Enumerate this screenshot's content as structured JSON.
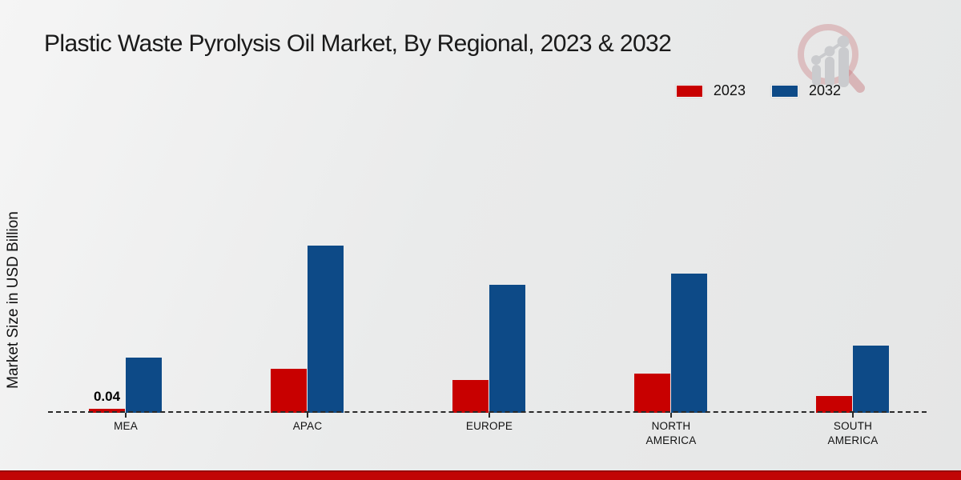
{
  "title": "Plastic Waste Pyrolysis Oil Market, By Regional, 2023 & 2032",
  "ylabel": "Market Size in USD Billion",
  "legend": {
    "items": [
      {
        "label": "2023",
        "color": "#c80000"
      },
      {
        "label": "2032",
        "color": "#0d4a87"
      }
    ],
    "position": "top-right"
  },
  "annotation_label": "0.04",
  "branding": {
    "logo": "magnifier-bar-chart-logo"
  },
  "footer": {
    "band_color": "#c10505"
  },
  "chart_data": {
    "type": "bar",
    "title": "Plastic Waste Pyrolysis Oil Market, By Regional, 2023 & 2032",
    "xlabel": "",
    "ylabel": "Market Size in USD Billion",
    "categories": [
      "MEA",
      "APAC",
      "EUROPE",
      "NORTH AMERICA",
      "SOUTH AMERICA"
    ],
    "series": [
      {
        "name": "2023",
        "color": "#c80000",
        "values": [
          0.04,
          0.44,
          0.33,
          0.39,
          0.17
        ]
      },
      {
        "name": "2032",
        "color": "#0d4a87",
        "values": [
          0.55,
          1.67,
          1.28,
          1.39,
          0.67
        ]
      }
    ],
    "ylim": [
      0,
      2.2
    ],
    "grid": false,
    "axis_line": "dashed-baseline",
    "legend_position": "top-right",
    "annotations": [
      {
        "series": "2023",
        "category": "MEA",
        "text": "0.04"
      }
    ]
  }
}
